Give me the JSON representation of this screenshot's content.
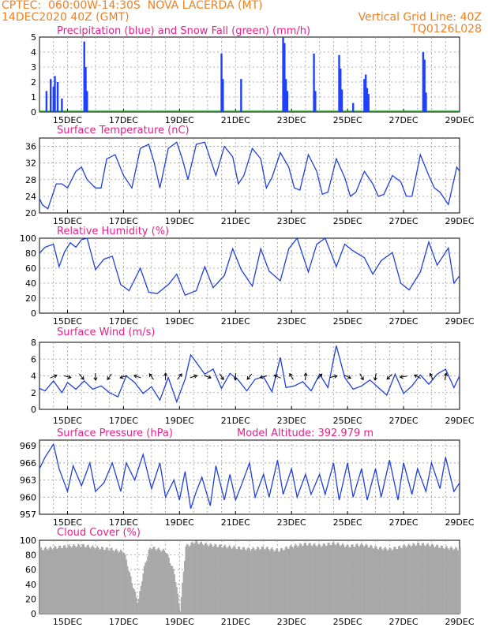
{
  "header": {
    "line1_left": "CPTEC:  060:00W-14:30S  NOVA LACERDA (MT)",
    "line2_left": "14DEC2020 40Z (GMT)",
    "line2_right": "Vertical Grid Line: 40Z",
    "line3_right": "TQ0126L028",
    "color": "#f08020"
  },
  "colors": {
    "title": "#e8208c",
    "line": "#2040d8",
    "precip": "#2040ff",
    "snow": "#00a000",
    "cloud": "#a8a8a8",
    "grid": "#9a9a9a"
  },
  "x_ticks": [
    "15DEC",
    "17DEC",
    "19DEC",
    "21DEC",
    "23DEC",
    "25DEC",
    "27DEC",
    "29DEC"
  ],
  "chart_data": [
    {
      "type": "bar",
      "title": "Precipitation (blue) and Snow Fall (green) (mm/h)",
      "ylim": [
        0,
        5
      ],
      "yticks": [
        "0",
        "1",
        "2",
        "3",
        "4",
        "5"
      ],
      "series": [
        {
          "name": "Precipitation",
          "color": "#2040ff",
          "points": [
            [
              14.25,
              1.4
            ],
            [
              14.4,
              2.2
            ],
            [
              14.5,
              1.7
            ],
            [
              14.55,
              2.4
            ],
            [
              14.65,
              2.0
            ],
            [
              14.8,
              0.9
            ],
            [
              15.6,
              4.7
            ],
            [
              15.65,
              3.0
            ],
            [
              15.7,
              1.4
            ],
            [
              20.5,
              3.9
            ],
            [
              20.55,
              2.2
            ],
            [
              21.2,
              2.2
            ],
            [
              22.7,
              5.0
            ],
            [
              22.75,
              4.6
            ],
            [
              22.8,
              2.2
            ],
            [
              22.85,
              1.4
            ],
            [
              23.8,
              3.9
            ],
            [
              23.85,
              1.4
            ],
            [
              24.7,
              3.8
            ],
            [
              24.75,
              2.9
            ],
            [
              24.8,
              1.5
            ],
            [
              25.2,
              0.6
            ],
            [
              25.6,
              2.2
            ],
            [
              25.65,
              2.5
            ],
            [
              25.7,
              1.6
            ],
            [
              25.75,
              1.2
            ],
            [
              27.7,
              4.0
            ],
            [
              27.75,
              3.5
            ],
            [
              27.8,
              1.3
            ]
          ]
        },
        {
          "name": "Snow Fall",
          "color": "#00a000",
          "value": 0
        }
      ]
    },
    {
      "type": "line",
      "title": "Surface Temperature (nC)",
      "ylim": [
        20,
        38
      ],
      "yticks": [
        "20",
        "24",
        "28",
        "32",
        "36"
      ],
      "x": [
        14.0,
        14.1,
        14.3,
        14.6,
        14.8,
        15.0,
        15.3,
        15.5,
        15.7,
        16.0,
        16.2,
        16.4,
        16.7,
        17.0,
        17.3,
        17.6,
        17.9,
        18.1,
        18.3,
        18.6,
        18.9,
        19.1,
        19.3,
        19.6,
        19.9,
        20.1,
        20.3,
        20.6,
        20.9,
        21.1,
        21.3,
        21.6,
        21.9,
        22.1,
        22.3,
        22.6,
        22.9,
        23.1,
        23.3,
        23.6,
        23.9,
        24.1,
        24.3,
        24.6,
        24.9,
        25.1,
        25.3,
        25.6,
        25.9,
        26.1,
        26.3,
        26.6,
        26.9,
        27.1,
        27.3,
        27.6,
        27.9,
        28.1,
        28.3,
        28.6,
        28.9,
        29.0
      ],
      "y": [
        23.5,
        22,
        21,
        27,
        27,
        26,
        30,
        31,
        28,
        26,
        26,
        33,
        34,
        29,
        26,
        35.5,
        36.5,
        32,
        26,
        35.5,
        37,
        33,
        28,
        36.5,
        37,
        33,
        29,
        36,
        33.5,
        27,
        29,
        35.5,
        33,
        26,
        28.5,
        34.5,
        31,
        26,
        25.5,
        34,
        30,
        24.5,
        25,
        33,
        28.5,
        24,
        25,
        30,
        27,
        24,
        24.5,
        29,
        27.5,
        24,
        24,
        34,
        29,
        26,
        25,
        22,
        31,
        30
      ]
    },
    {
      "type": "line",
      "title": "Relative Humidity (%)",
      "ylim": [
        0,
        100
      ],
      "yticks": [
        "0",
        "20",
        "40",
        "60",
        "80",
        "100"
      ],
      "x": [
        14.0,
        14.2,
        14.5,
        14.7,
        14.9,
        15.1,
        15.3,
        15.5,
        15.7,
        16.0,
        16.3,
        16.6,
        16.9,
        17.2,
        17.6,
        17.9,
        18.2,
        18.6,
        18.9,
        19.2,
        19.6,
        19.9,
        20.2,
        20.6,
        20.9,
        21.2,
        21.6,
        21.9,
        22.2,
        22.6,
        22.9,
        23.2,
        23.6,
        23.9,
        24.2,
        24.6,
        24.9,
        25.2,
        25.6,
        25.9,
        26.2,
        26.6,
        26.9,
        27.2,
        27.6,
        27.9,
        28.2,
        28.6,
        28.8,
        29.0
      ],
      "y": [
        80,
        88,
        92,
        62,
        82,
        94,
        88,
        98,
        100,
        58,
        72,
        76,
        38,
        30,
        60,
        28,
        26,
        38,
        52,
        24,
        30,
        62,
        34,
        50,
        86,
        58,
        36,
        86,
        56,
        43,
        86,
        100,
        55,
        92,
        100,
        62,
        92,
        83,
        74,
        52,
        70,
        81,
        40,
        31,
        55,
        95,
        64,
        87,
        40,
        50
      ]
    },
    {
      "type": "line",
      "title": "Surface Wind (m/s)",
      "ylim": [
        0,
        8
      ],
      "yticks": [
        "0",
        "2",
        "4",
        "6",
        "8"
      ],
      "x": [
        14.0,
        14.2,
        14.5,
        14.8,
        15.0,
        15.3,
        15.6,
        15.9,
        16.2,
        16.5,
        16.8,
        17.1,
        17.4,
        17.7,
        18.0,
        18.3,
        18.6,
        18.9,
        19.2,
        19.4,
        19.6,
        19.9,
        20.2,
        20.5,
        20.8,
        21.1,
        21.4,
        21.7,
        22.0,
        22.3,
        22.6,
        22.8,
        23.1,
        23.4,
        23.7,
        24.0,
        24.3,
        24.6,
        24.9,
        25.2,
        25.5,
        25.8,
        26.1,
        26.4,
        26.7,
        27.0,
        27.3,
        27.6,
        27.9,
        28.2,
        28.5,
        28.8,
        29.0
      ],
      "y": [
        2.5,
        2.2,
        3.4,
        2.0,
        3.2,
        2.4,
        3.4,
        2.4,
        2.8,
        2.0,
        1.5,
        4.0,
        3.2,
        1.9,
        2.7,
        1.1,
        3.8,
        0.9,
        3.6,
        6.5,
        5.6,
        4.2,
        4.8,
        2.5,
        4.3,
        3.5,
        2.2,
        3.6,
        3.9,
        2.1,
        6.2,
        2.6,
        2.8,
        3.3,
        2.2,
        4.2,
        2.6,
        7.6,
        3.8,
        2.4,
        2.8,
        3.5,
        2.6,
        1.7,
        4.2,
        1.9,
        2.8,
        4.1,
        3.0,
        4.2,
        4.8,
        2.6,
        4.0
      ]
    },
    {
      "type": "line",
      "title": "Surface Pressure (hPa)",
      "annotation": "Model Altitude: 392.979  m",
      "ylim": [
        957,
        970
      ],
      "yticks": [
        "957",
        "960",
        "963",
        "966",
        "969"
      ],
      "x": [
        14.0,
        14.2,
        14.5,
        14.7,
        15.0,
        15.2,
        15.5,
        15.8,
        16.0,
        16.3,
        16.6,
        16.9,
        17.1,
        17.4,
        17.7,
        18.0,
        18.3,
        18.5,
        18.8,
        19.0,
        19.2,
        19.4,
        19.6,
        19.8,
        20.1,
        20.3,
        20.6,
        20.8,
        21.0,
        21.2,
        21.5,
        21.7,
        22.0,
        22.2,
        22.5,
        22.7,
        23.0,
        23.2,
        23.5,
        23.7,
        24.0,
        24.2,
        24.5,
        24.7,
        25.0,
        25.2,
        25.5,
        25.7,
        26.0,
        26.2,
        26.5,
        26.8,
        27.0,
        27.3,
        27.5,
        27.8,
        28.0,
        28.3,
        28.5,
        28.8,
        29.0
      ],
      "y": [
        965,
        967,
        969.3,
        965,
        961,
        965.5,
        962,
        966,
        961,
        962.5,
        966,
        961,
        966,
        963,
        967.5,
        961.5,
        966,
        960,
        963,
        959.5,
        964.5,
        958,
        961,
        963.5,
        958.5,
        965.5,
        959.5,
        964,
        959.5,
        962,
        966,
        960,
        964,
        960,
        966.5,
        960.5,
        965,
        960,
        964,
        960.5,
        964,
        960.5,
        966,
        959.5,
        966,
        960,
        965,
        959.5,
        965,
        960,
        966.5,
        959.5,
        966,
        960.5,
        965,
        961,
        966,
        961.5,
        967,
        961,
        962.5
      ]
    },
    {
      "type": "bar",
      "title": "Cloud Cover (%)",
      "ylim": [
        0,
        100
      ],
      "yticks": [
        "0",
        "20",
        "40",
        "60",
        "80",
        "100"
      ],
      "x": [
        14,
        14.5,
        15,
        15.5,
        16,
        16.5,
        17,
        17.3,
        17.5,
        17.7,
        17.9,
        18,
        18.5,
        18.8,
        19,
        19.2,
        19.4,
        19.5,
        20,
        20.5,
        21,
        21.5,
        22,
        22.5,
        23,
        23.5,
        24,
        24.5,
        25,
        25.5,
        26,
        26.5,
        27,
        27.5,
        28,
        28.5,
        29
      ],
      "values": [
        88,
        90,
        92,
        93,
        90,
        88,
        84,
        40,
        15,
        60,
        88,
        90,
        85,
        55,
        5,
        92,
        95,
        98,
        94,
        92,
        90,
        88,
        90,
        86,
        92,
        95,
        93,
        96,
        92,
        94,
        90,
        88,
        92,
        95,
        93,
        90,
        88
      ]
    }
  ]
}
